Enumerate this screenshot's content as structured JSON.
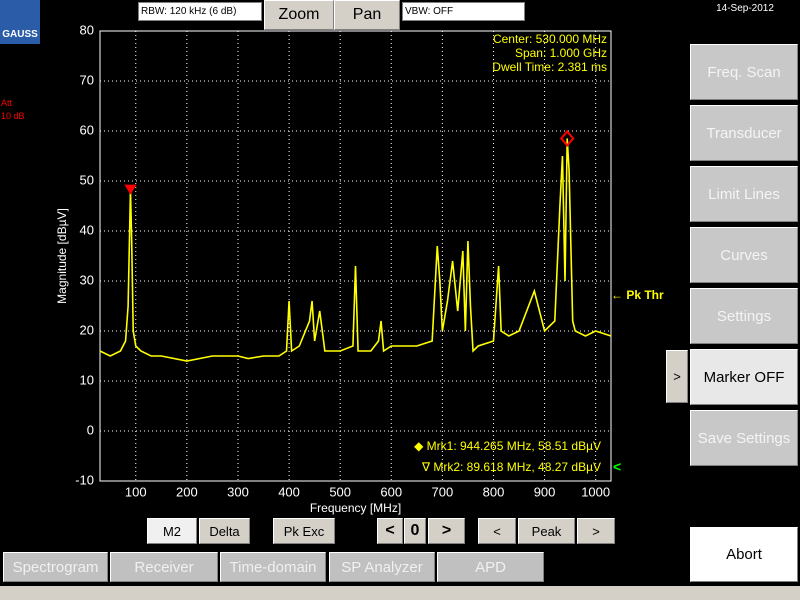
{
  "logo": "GAUSS",
  "toolbar": {
    "rbw": "RBW: 120 kHz (6 dB)",
    "zoom": "Zoom",
    "pan": "Pan",
    "vbw": "VBW: OFF",
    "date": "14-Sep-2012"
  },
  "attenuation": [
    "Att",
    "10 dB"
  ],
  "chart_data": {
    "type": "line",
    "xlabel": "Frequency [MHz]",
    "ylabel": "Magnitude [dBµV]",
    "annotations": [
      "Center: 530.000 MHz",
      "Span: 1.000 GHz",
      "Dwell Time: 2.381 ms"
    ],
    "xlim": [
      30,
      1030
    ],
    "ylim": [
      -10,
      80
    ],
    "xticks": [
      100,
      200,
      300,
      400,
      500,
      600,
      700,
      800,
      900,
      1000
    ],
    "yticks": [
      -10,
      0,
      10,
      20,
      30,
      40,
      50,
      60,
      70,
      80
    ],
    "grid": true,
    "x": [
      30,
      50,
      70,
      80,
      85,
      88,
      89.618,
      92,
      95,
      100,
      110,
      130,
      150,
      200,
      250,
      290,
      300,
      320,
      350,
      380,
      395,
      400,
      405,
      420,
      440,
      445,
      450,
      460,
      470,
      500,
      525,
      530,
      535,
      560,
      575,
      580,
      585,
      600,
      650,
      680,
      690,
      695,
      700,
      710,
      720,
      730,
      740,
      745,
      750,
      755,
      760,
      770,
      800,
      810,
      815,
      830,
      850,
      880,
      900,
      920,
      930,
      935,
      940,
      944.265,
      948,
      955,
      960,
      980,
      1000,
      1030
    ],
    "series": [
      {
        "color": "#ffff00",
        "values": [
          16,
          15,
          16,
          18,
          25,
          40,
          48.27,
          38,
          20,
          17,
          16,
          15,
          15,
          14,
          15,
          15,
          15,
          14.5,
          15,
          15,
          16,
          26,
          16,
          17,
          22,
          26,
          18,
          24,
          16,
          16,
          17,
          33,
          16,
          16,
          18,
          22,
          16,
          17,
          17,
          18,
          37,
          30,
          20,
          26,
          34,
          24,
          36,
          20,
          38,
          25,
          16,
          17,
          18,
          33,
          20,
          19,
          20,
          28,
          20,
          22,
          45,
          55,
          30,
          58.51,
          52,
          22,
          20,
          19,
          20,
          19
        ]
      }
    ],
    "markers": [
      {
        "label": "◆ Mrk1: 944.265 MHz, 58.51 dBµV",
        "x": 944.265,
        "y": 58.51,
        "color": "#ff0000"
      },
      {
        "label": "∇ Mrk2: 89.618 MHz, 48.27 dBµV",
        "x": 89.618,
        "y": 48.27,
        "color": "#ff0000"
      }
    ],
    "active_marker": "<",
    "threshold": {
      "label": "← Pk Thr",
      "value": 27
    }
  },
  "marker_buttons": [
    "M2",
    "Delta",
    "Pk Exc",
    "<",
    "0",
    ">",
    "<",
    "Peak",
    ">"
  ],
  "tabs": [
    "Spectrogram",
    "Receiver",
    "Time-domain",
    "SP Analyzer",
    "APD"
  ],
  "side_buttons": [
    "Freq. Scan",
    "Transducer",
    "Limit Lines",
    "Curves",
    "Settings",
    "Marker OFF",
    "Save Settings"
  ],
  "expand_button": ">",
  "abort": "Abort"
}
